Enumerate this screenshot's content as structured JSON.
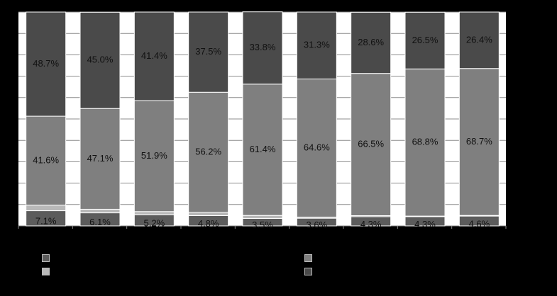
{
  "chart_data": {
    "type": "bar",
    "stacked": true,
    "percent": true,
    "categories": [
      "",
      "",
      "",
      "",
      "",
      "",
      "",
      "",
      ""
    ],
    "series": [
      {
        "color": "#5c5c5c",
        "values": [
          7.1,
          6.1,
          5.2,
          4.8,
          3.5,
          3.6,
          4.3,
          4.3,
          4.6
        ],
        "labels": [
          "7.1%",
          "6.1%",
          "5.2%",
          "4.8%",
          "3.5%",
          "3.6%",
          "4.3%",
          "4.3%",
          "4.6%"
        ]
      },
      {
        "color": "#b8b8b8",
        "values": [
          2.6,
          1.7,
          1.5,
          1.5,
          1.4,
          0.5,
          0.5,
          0.3,
          0.3
        ],
        "labels": [
          "2.6%",
          "1.7%",
          "1.5%",
          "1.5%",
          "1.4%",
          "0.5%",
          "0.5%",
          "0.3%",
          "0.3%"
        ]
      },
      {
        "color": "#7f7f7f",
        "values": [
          41.6,
          47.1,
          51.9,
          56.2,
          61.4,
          64.6,
          66.5,
          68.8,
          68.7
        ],
        "labels": [
          "41.6%",
          "47.1%",
          "51.9%",
          "56.2%",
          "61.4%",
          "64.6%",
          "66.5%",
          "68.8%",
          "68.7%"
        ]
      },
      {
        "color": "#4a4a4a",
        "values": [
          48.7,
          45.0,
          41.4,
          37.5,
          33.8,
          31.3,
          28.6,
          26.5,
          26.4
        ],
        "labels": [
          "48.7%",
          "45.0%",
          "41.4%",
          "37.5%",
          "33.8%",
          "31.3%",
          "28.6%",
          "26.5%",
          "26.4%"
        ]
      }
    ],
    "ylim": [
      0,
      100
    ],
    "grid": true,
    "legend": "bottom",
    "colors": {
      "background": "#000000",
      "plot_background": "#ffffff",
      "gridline": "#8c8c8c",
      "label": "#111111"
    }
  }
}
